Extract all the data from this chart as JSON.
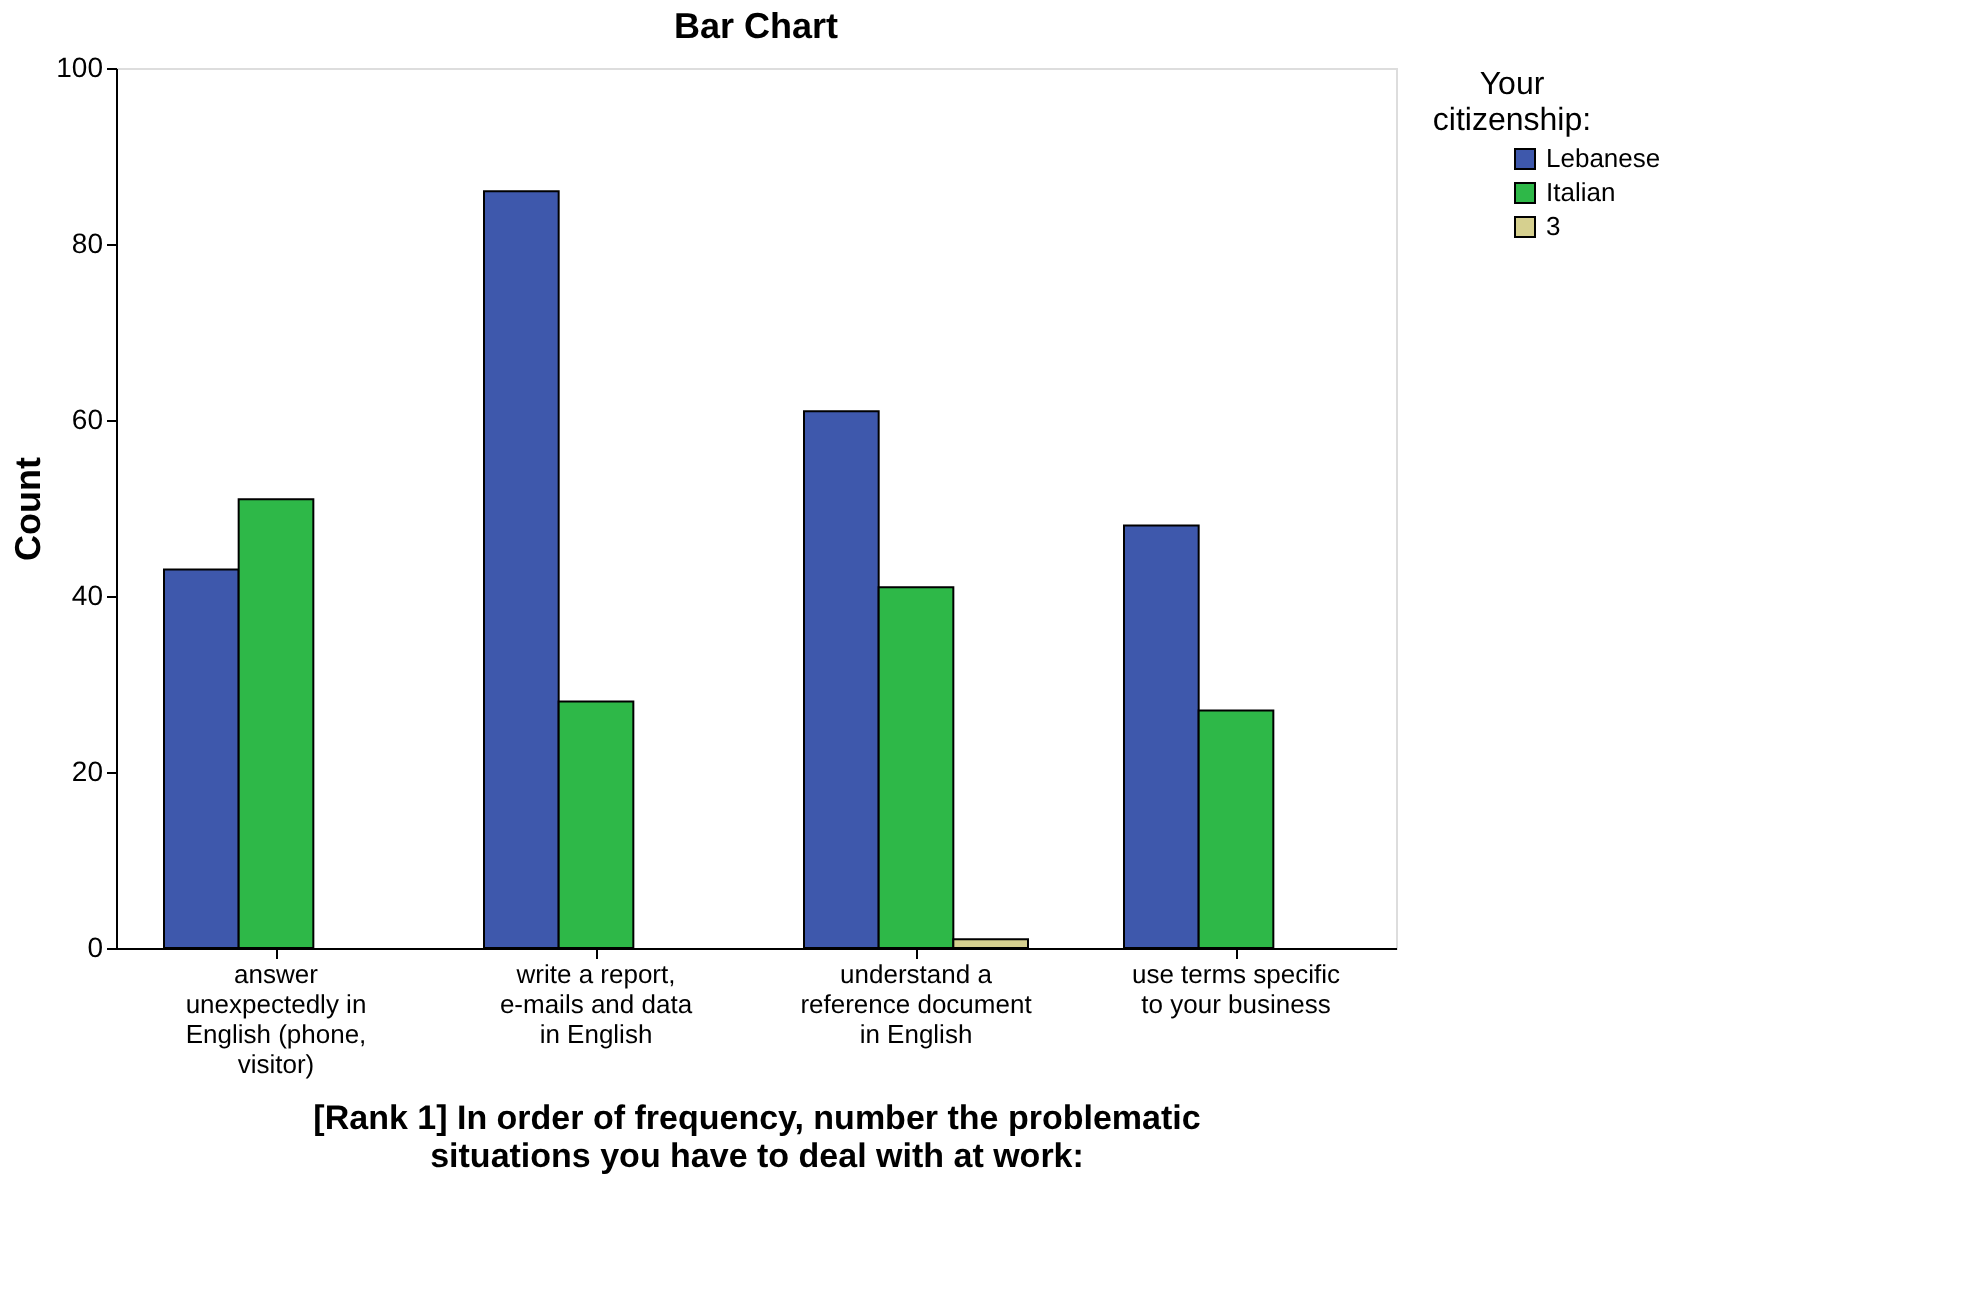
{
  "chart_data": {
    "type": "bar",
    "title": "Bar Chart",
    "xlabel": "[Rank 1] In order of frequency, number the problematic situations you have to deal with at work:",
    "ylabel": "Count",
    "legend_title": "Your citizenship:",
    "categories": [
      "answer unexpectedly in English (phone, visitor)",
      "write a report, e-mails and data in English",
      "understand a reference document in English",
      "use terms specific to your business"
    ],
    "series": [
      {
        "name": "Lebanese",
        "color": "#3e58ac",
        "values": [
          43,
          86,
          61,
          48
        ]
      },
      {
        "name": "Italian",
        "color": "#2eb848",
        "values": [
          51,
          28,
          41,
          27
        ]
      },
      {
        "name": "3",
        "color": "#d6d08f",
        "values": [
          null,
          null,
          1,
          null
        ]
      }
    ],
    "ylim": [
      0,
      100
    ],
    "yticks": [
      0,
      20,
      40,
      60,
      80,
      100
    ],
    "grid": false,
    "legend": "top right"
  }
}
